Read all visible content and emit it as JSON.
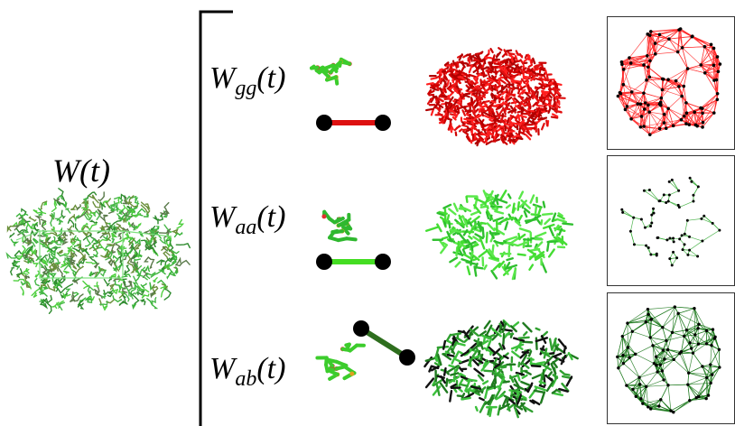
{
  "main": {
    "symbol": "W",
    "sub": "",
    "arg": "(t)"
  },
  "rows": [
    {
      "id": "gg",
      "symbol": "W",
      "sub": "gg",
      "arg": "(t)",
      "color": "#d40000",
      "edge_color": "#ff2a2a",
      "bar_color": "#dd1111"
    },
    {
      "id": "aa",
      "symbol": "W",
      "sub": "aa",
      "arg": "(t)",
      "color": "#38d438",
      "edge_color": "#2fa82f",
      "bar_color": "#44dd22"
    },
    {
      "id": "ab",
      "symbol": "W",
      "sub": "ab",
      "arg": "(t)",
      "color": "#1f8a1f",
      "edge_color": "#1e7a1e",
      "bar_color": "#2e6e1e"
    }
  ],
  "colors": {
    "node": "#000000",
    "mixed": "#5fcf48",
    "bracket": "#000000"
  }
}
